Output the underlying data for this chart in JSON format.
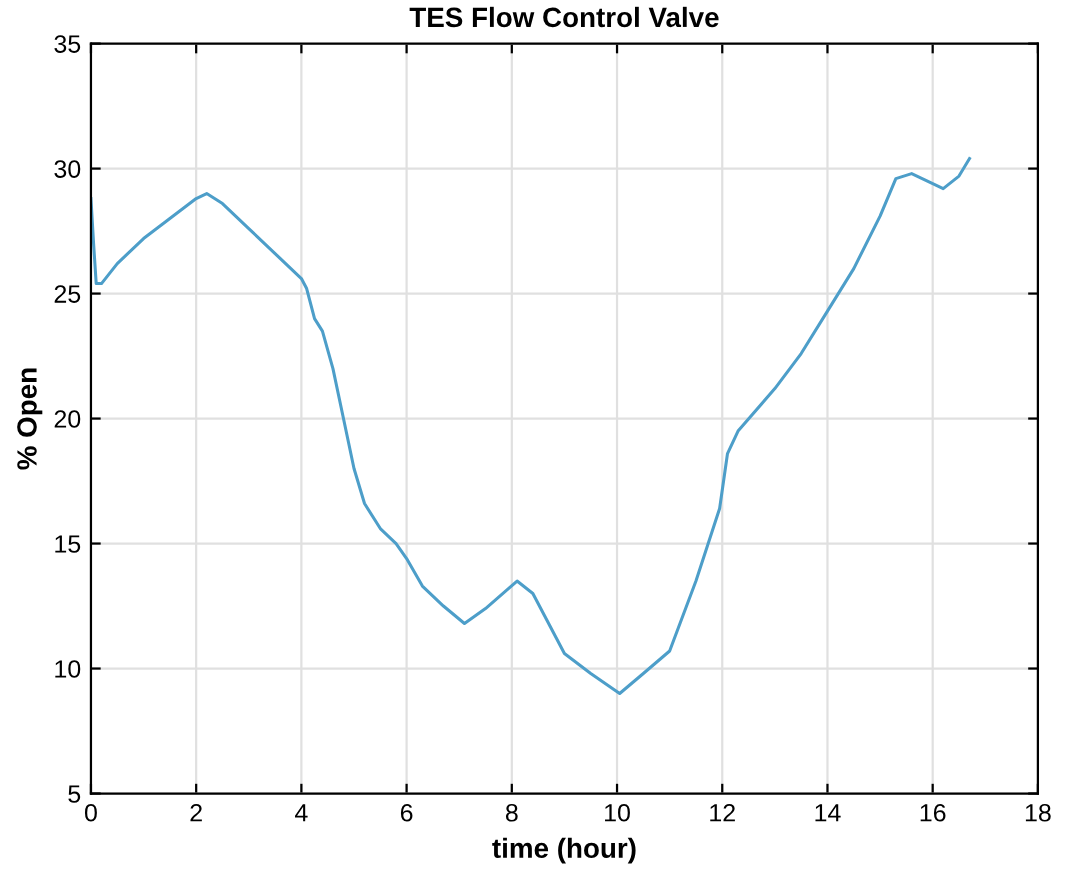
{
  "chart_data": {
    "type": "line",
    "title": "TES Flow Control Valve",
    "xlabel": "time (hour)",
    "ylabel": "% Open",
    "xlim": [
      0,
      18
    ],
    "xticks": [
      0,
      2,
      4,
      6,
      8,
      10,
      12,
      14,
      16,
      18
    ],
    "ylim": [
      5,
      35
    ],
    "yticks": [
      5,
      10,
      15,
      20,
      25,
      30,
      35
    ],
    "grid": true,
    "series": [
      {
        "color": "#4d9ec9",
        "x": [
          0,
          0.05,
          0.1,
          0.2,
          0.5,
          1,
          1.5,
          2,
          2.2,
          2.5,
          3,
          3.5,
          4,
          4.1,
          4.25,
          4.4,
          4.6,
          4.8,
          5,
          5.2,
          5.5,
          5.8,
          6,
          6.3,
          6.7,
          7.1,
          7.5,
          8.1,
          8.4,
          8.7,
          9,
          9.5,
          10.05,
          10.5,
          11,
          11.5,
          11.95,
          12.1,
          12.3,
          13,
          13.5,
          14,
          14.5,
          15,
          15.3,
          15.6,
          15.9,
          16.2,
          16.5,
          16.7
        ],
        "values": [
          28.8,
          27,
          25.4,
          25.4,
          26.2,
          27.2,
          28,
          28.8,
          29,
          28.6,
          27.6,
          26.6,
          25.6,
          25.2,
          24,
          23.5,
          22,
          20,
          18,
          16.6,
          15.6,
          15,
          14.4,
          13.3,
          12.5,
          11.8,
          12.4,
          13.5,
          13,
          11.8,
          10.6,
          9.8,
          9,
          9.8,
          10.7,
          13.5,
          16.4,
          18.6,
          19.5,
          21.2,
          22.6,
          24.3,
          26,
          28.1,
          29.6,
          29.8,
          29.5,
          29.2,
          29.7,
          30.4
        ]
      }
    ]
  }
}
